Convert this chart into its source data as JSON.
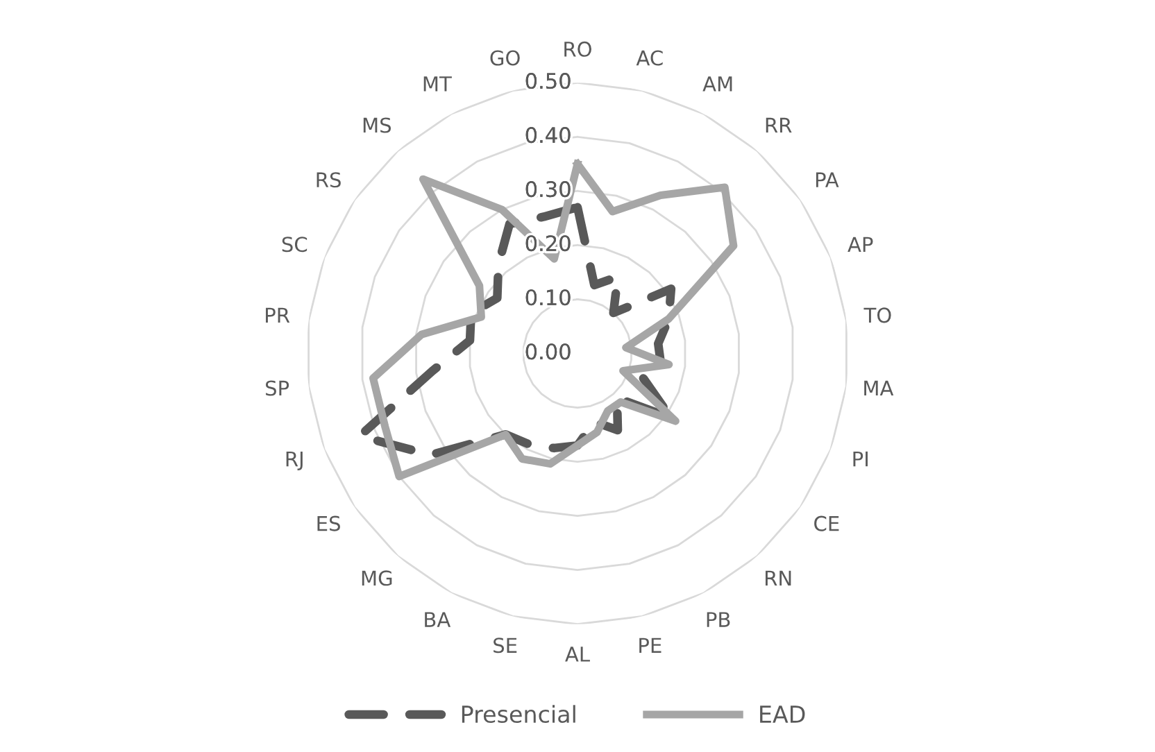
{
  "chart_data": {
    "type": "radar",
    "categories": [
      "RO",
      "AC",
      "AM",
      "RR",
      "PA",
      "AP",
      "TO",
      "MA",
      "PI",
      "CE",
      "RN",
      "PB",
      "PE",
      "AL",
      "SE",
      "BA",
      "MG",
      "ES",
      "RJ",
      "SP",
      "PR",
      "SC",
      "RS",
      "MS",
      "MT",
      "GO"
    ],
    "series": [
      {
        "name": "Presencial",
        "color": "#595959",
        "line_style": "dashed",
        "values": [
          0.27,
          0.13,
          0.16,
          0.1,
          0.21,
          0.18,
          0.15,
          0.155,
          0.13,
          0.21,
          0.11,
          0.16,
          0.13,
          0.17,
          0.18,
          0.19,
          0.2,
          0.33,
          0.43,
          0.27,
          0.2,
          0.21,
          0.18,
          0.22,
          0.27,
          0.26
        ]
      },
      {
        "name": "EAD",
        "color": "#a6a6a6",
        "line_style": "solid",
        "values": [
          0.35,
          0.27,
          0.33,
          0.41,
          0.35,
          0.18,
          0.09,
          0.17,
          0.09,
          0.22,
          0.12,
          0.12,
          0.15,
          0.17,
          0.21,
          0.22,
          0.2,
          0.4,
          0.38,
          0.38,
          0.29,
          0.19,
          0.22,
          0.43,
          0.3,
          0.18
        ]
      }
    ],
    "ylim": [
      0,
      0.5
    ],
    "yticks": [
      {
        "value": 0,
        "label": "0.00"
      },
      {
        "value": 0.1,
        "label": "0.10"
      },
      {
        "value": 0.2,
        "label": "0.20"
      },
      {
        "value": 0.3,
        "label": "0.30"
      },
      {
        "value": 0.4,
        "label": "0.40"
      },
      {
        "value": 0.5,
        "label": "0.50"
      }
    ],
    "grid": true,
    "legend": "bottom"
  }
}
